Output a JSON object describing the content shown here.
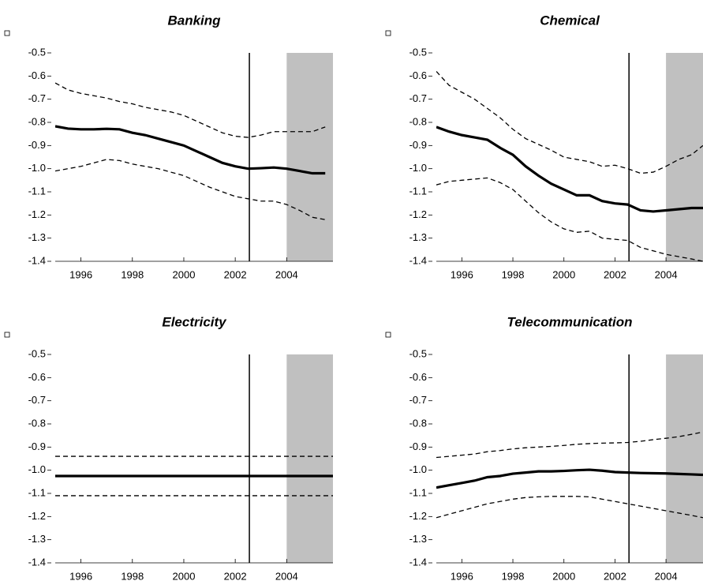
{
  "chart_data": [
    {
      "type": "line",
      "title": "Banking",
      "xlim": [
        1995,
        2005.8
      ],
      "xticks": [
        1996,
        1998,
        2000,
        2002,
        2004
      ],
      "ylim": [
        -1.4,
        -0.5
      ],
      "yticks": [
        -0.5,
        -0.6,
        -0.7,
        -0.8,
        -0.9,
        {
          "value": -1,
          "label": "-1.0"
        },
        -1.1,
        -1.2,
        -1.3,
        -1.4
      ],
      "vline": 2002.55,
      "shade": [
        2004,
        2005.8
      ],
      "x": [
        1995,
        1995.5,
        1996,
        1996.5,
        1997,
        1997.5,
        1998,
        1998.5,
        1999,
        1999.5,
        2000,
        2000.5,
        2001,
        2001.5,
        2002,
        2002.5,
        2003,
        2003.5,
        2004,
        2004.5,
        2005,
        2005.5
      ],
      "series": [
        {
          "color": "#000000",
          "style": "solid",
          "values": [
            -0.817,
            -0.827,
            -0.83,
            -0.83,
            -0.828,
            -0.83,
            -0.845,
            -0.855,
            -0.87,
            -0.885,
            -0.9,
            -0.925,
            -0.95,
            -0.975,
            -0.99,
            -1,
            -0.998,
            -0.995,
            -1,
            -1.01,
            -1.02,
            -1.02
          ]
        },
        {
          "color": "#000000",
          "style": "dashed",
          "values": [
            -0.63,
            -0.66,
            -0.675,
            -0.685,
            -0.695,
            -0.71,
            -0.72,
            -0.735,
            -0.745,
            -0.755,
            -0.77,
            -0.795,
            -0.82,
            -0.845,
            -0.86,
            -0.865,
            -0.855,
            -0.84,
            -0.84,
            -0.84,
            -0.84,
            -0.82
          ]
        },
        {
          "color": "#000000",
          "style": "dashed",
          "values": [
            -1.01,
            -1,
            -0.99,
            -0.975,
            -0.96,
            -0.965,
            -0.98,
            -0.99,
            -1,
            -1.015,
            -1.03,
            -1.055,
            -1.08,
            -1.1,
            -1.12,
            -1.13,
            -1.14,
            -1.14,
            -1.155,
            -1.18,
            -1.21,
            -1.22
          ]
        }
      ]
    },
    {
      "type": "line",
      "title": "Chemical",
      "xlim": [
        1995,
        2005.45
      ],
      "xticks": [
        1996,
        1998,
        2000,
        2002,
        2004
      ],
      "ylim": [
        -1.4,
        -0.5
      ],
      "yticks": [
        -0.5,
        -0.6,
        -0.7,
        -0.8,
        -0.9,
        {
          "value": -1,
          "label": "-1.0"
        },
        -1.1,
        -1.2,
        -1.3,
        -1.4
      ],
      "vline": 2002.55,
      "shade": [
        2004,
        2005.45
      ],
      "x": [
        1995,
        1995.5,
        1996,
        1996.5,
        1997,
        1997.5,
        1998,
        1998.5,
        1999,
        1999.5,
        2000,
        2000.5,
        2001,
        2001.5,
        2002,
        2002.5,
        2003,
        2003.5,
        2004,
        2004.5,
        2005,
        2005.45
      ],
      "series": [
        {
          "color": "#000000",
          "style": "solid",
          "values": [
            -0.82,
            -0.84,
            -0.855,
            -0.865,
            -0.875,
            -0.91,
            -0.94,
            -0.99,
            -1.03,
            -1.065,
            -1.09,
            -1.115,
            -1.115,
            -1.14,
            -1.15,
            -1.155,
            -1.18,
            -1.185,
            -1.18,
            -1.175,
            -1.17,
            -1.17
          ]
        },
        {
          "color": "#000000",
          "style": "dashed",
          "values": [
            -0.58,
            -0.64,
            -0.67,
            -0.7,
            -0.74,
            -0.78,
            -0.83,
            -0.87,
            -0.895,
            -0.92,
            -0.95,
            -0.96,
            -0.97,
            -0.99,
            -0.985,
            -1,
            -1.02,
            -1.015,
            -0.99,
            -0.96,
            -0.94,
            -0.9
          ]
        },
        {
          "color": "#000000",
          "style": "dashed",
          "values": [
            -1.07,
            -1.055,
            -1.05,
            -1.045,
            -1.04,
            -1.06,
            -1.09,
            -1.14,
            -1.19,
            -1.23,
            -1.26,
            -1.275,
            -1.27,
            -1.3,
            -1.305,
            -1.31,
            -1.34,
            -1.355,
            -1.37,
            -1.38,
            -1.39,
            -1.4
          ]
        }
      ]
    },
    {
      "type": "line",
      "title": "Electricity",
      "xlim": [
        1995,
        2005.8
      ],
      "xticks": [
        1996,
        1998,
        2000,
        2002,
        2004
      ],
      "ylim": [
        -1.4,
        -0.5
      ],
      "yticks": [
        -0.5,
        -0.6,
        -0.7,
        -0.8,
        -0.9,
        {
          "value": -1,
          "label": "-1.0"
        },
        -1.1,
        -1.2,
        -1.3,
        -1.4
      ],
      "vline": 2002.55,
      "shade": [
        2004,
        2005.8
      ],
      "x": [
        1995,
        2005.8
      ],
      "series": [
        {
          "color": "#000000",
          "style": "solid",
          "values": [
            -1.025,
            -1.025
          ]
        },
        {
          "color": "#000000",
          "style": "dashed",
          "values": [
            -0.94,
            -0.94
          ]
        },
        {
          "color": "#000000",
          "style": "dashed",
          "values": [
            -1.11,
            -1.11
          ]
        }
      ]
    },
    {
      "type": "line",
      "title": "Telecommunication",
      "xlim": [
        1995,
        2005.45
      ],
      "xticks": [
        1996,
        1998,
        2000,
        2002,
        2004
      ],
      "ylim": [
        -1.4,
        -0.5
      ],
      "yticks": [
        -0.5,
        -0.6,
        -0.7,
        -0.8,
        -0.9,
        {
          "value": -1,
          "label": "-1.0"
        },
        -1.1,
        -1.2,
        -1.3,
        -1.4
      ],
      "vline": 2002.55,
      "shade": [
        2004,
        2005.45
      ],
      "x": [
        1995,
        1995.5,
        1996,
        1996.5,
        1997,
        1997.5,
        1998,
        1998.5,
        1999,
        1999.5,
        2000,
        2000.5,
        2001,
        2001.5,
        2002,
        2002.5,
        2003,
        2003.5,
        2004,
        2004.5,
        2005,
        2005.45
      ],
      "series": [
        {
          "color": "#000000",
          "style": "solid",
          "values": [
            -1.075,
            -1.065,
            -1.055,
            -1.045,
            -1.03,
            -1.025,
            -1.015,
            -1.01,
            -1.005,
            -1.005,
            -1.003,
            -1,
            -0.998,
            -1.002,
            -1.008,
            -1.01,
            -1.012,
            -1.013,
            -1.014,
            -1.016,
            -1.018,
            -1.02
          ]
        },
        {
          "color": "#000000",
          "style": "dashed",
          "values": [
            -0.945,
            -0.94,
            -0.935,
            -0.93,
            -0.92,
            -0.915,
            -0.908,
            -0.903,
            -0.9,
            -0.897,
            -0.893,
            -0.888,
            -0.885,
            -0.883,
            -0.882,
            -0.88,
            -0.875,
            -0.868,
            -0.862,
            -0.855,
            -0.845,
            -0.835
          ]
        },
        {
          "color": "#000000",
          "style": "dashed",
          "values": [
            -1.205,
            -1.19,
            -1.175,
            -1.16,
            -1.145,
            -1.135,
            -1.125,
            -1.118,
            -1.115,
            -1.113,
            -1.113,
            -1.113,
            -1.115,
            -1.125,
            -1.135,
            -1.145,
            -1.155,
            -1.165,
            -1.175,
            -1.185,
            -1.195,
            -1.205
          ]
        }
      ]
    }
  ]
}
